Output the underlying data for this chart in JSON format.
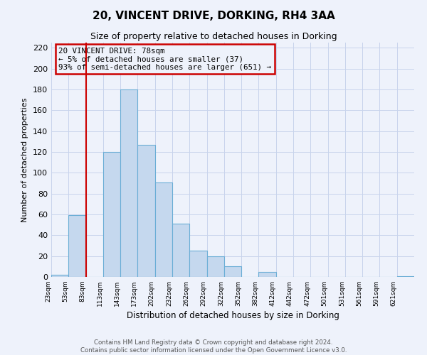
{
  "title": "20, VINCENT DRIVE, DORKING, RH4 3AA",
  "subtitle": "Size of property relative to detached houses in Dorking",
  "xlabel": "Distribution of detached houses by size in Dorking",
  "ylabel": "Number of detached properties",
  "bin_labels": [
    "23sqm",
    "53sqm",
    "83sqm",
    "113sqm",
    "143sqm",
    "173sqm",
    "202sqm",
    "232sqm",
    "262sqm",
    "292sqm",
    "322sqm",
    "352sqm",
    "382sqm",
    "412sqm",
    "442sqm",
    "472sqm",
    "501sqm",
    "531sqm",
    "561sqm",
    "591sqm",
    "621sqm"
  ],
  "bar_heights": [
    2,
    59,
    0,
    120,
    180,
    127,
    91,
    51,
    25,
    20,
    10,
    0,
    5,
    0,
    0,
    0,
    0,
    0,
    0,
    0,
    1
  ],
  "bar_color": "#c5d8ee",
  "bar_edge_color": "#6baed6",
  "vline_color": "#cc0000",
  "annotation_title": "20 VINCENT DRIVE: 78sqm",
  "annotation_line1": "← 5% of detached houses are smaller (37)",
  "annotation_line2": "93% of semi-detached houses are larger (651) →",
  "annotation_box_color": "#cc0000",
  "ylim": [
    0,
    225
  ],
  "yticks": [
    0,
    20,
    40,
    60,
    80,
    100,
    120,
    140,
    160,
    180,
    200,
    220
  ],
  "footer_line1": "Contains HM Land Registry data © Crown copyright and database right 2024.",
  "footer_line2": "Contains public sector information licensed under the Open Government Licence v3.0.",
  "background_color": "#eef2fb",
  "grid_color": "#c8d4ec"
}
